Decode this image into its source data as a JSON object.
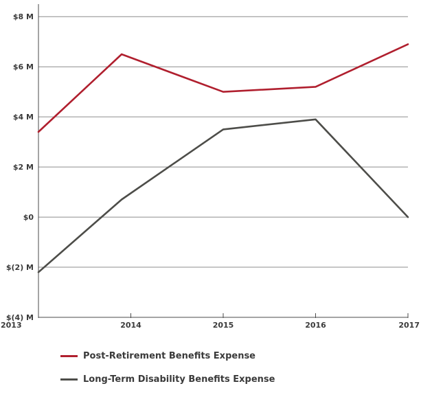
{
  "chart_data": {
    "type": "line",
    "x": [
      "2013",
      "2014",
      "2015",
      "2016",
      "2017"
    ],
    "y_ticks": [
      {
        "value": 8,
        "label": "$8 M"
      },
      {
        "value": 6,
        "label": "$6 M"
      },
      {
        "value": 4,
        "label": "$4 M"
      },
      {
        "value": 2,
        "label": "$2 M"
      },
      {
        "value": 0,
        "label": "$0"
      },
      {
        "value": -2,
        "label": "$(2) M"
      },
      {
        "value": -4,
        "label": "$(4) M"
      }
    ],
    "ylim": [
      -4,
      8.5
    ],
    "grid": "horizontal",
    "legend_position": "bottom",
    "series": [
      {
        "name": "Post-Retirement Benefits Expense",
        "color": "#b01f2e",
        "points": [
          [
            2013,
            3.4
          ],
          [
            2013.9,
            6.5
          ],
          [
            2015,
            5.0
          ],
          [
            2016,
            5.2
          ],
          [
            2017,
            6.9
          ]
        ]
      },
      {
        "name": "Long-Term Disability Benefits Expense",
        "color": "#4d4d49",
        "points": [
          [
            2013,
            -2.2
          ],
          [
            2013.9,
            0.7
          ],
          [
            2015,
            3.5
          ],
          [
            2016,
            3.9
          ],
          [
            2017,
            0.0
          ]
        ]
      }
    ]
  }
}
